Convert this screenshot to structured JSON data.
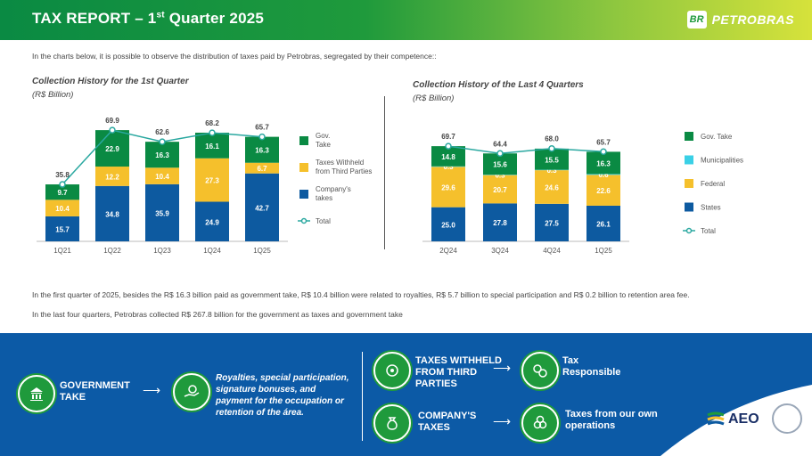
{
  "header": {
    "title_main": "TAX REPORT – 1",
    "title_sup": "st",
    "title_rest": " Quarter 2025",
    "logo_mark": "BR",
    "logo_text": "PETROBRAS"
  },
  "intro": "In the charts below, it is possible to observe the distribution of taxes paid by Petrobras, segregated by their competence::",
  "notes": [
    "In the first quarter of 2025, besides the R$ 16.3 billion paid as government take, R$ 10.4 billion were related to royalties, R$ 5.7 billion to special participation and R$ 0.2 billion to retention area fee.",
    "In the last four quarters, Petrobras collected R$ 267.8 billion for the government as taxes and government take"
  ],
  "colors": {
    "green": "#0a8a43",
    "yellow": "#f5c02c",
    "blue": "#0d5aa0",
    "cyan": "#3ad0e6",
    "line": "#2aa8a0",
    "footer": "#0c5aa6"
  },
  "chart_data": [
    {
      "type": "bar",
      "title": "Collection History for the 1st Quarter",
      "subtitle": "(R$ Billion)",
      "categories": [
        "1Q21",
        "1Q22",
        "1Q23",
        "1Q24",
        "1Q25"
      ],
      "series": [
        {
          "name": "Company's takes",
          "color": "#0d5aa0",
          "values": [
            15.7,
            34.8,
            35.9,
            24.9,
            42.7
          ]
        },
        {
          "name": "Taxes Withheld from Third Parties",
          "color": "#f5c02c",
          "values": [
            10.4,
            12.2,
            10.4,
            27.3,
            6.7
          ]
        },
        {
          "name": "Gov. Take",
          "color": "#0a8a43",
          "values": [
            9.7,
            22.9,
            16.3,
            16.1,
            16.3
          ]
        }
      ],
      "total": {
        "name": "Total",
        "values": [
          35.8,
          69.9,
          62.6,
          68.2,
          65.7
        ]
      },
      "legend": [
        "Gov. Take",
        "Taxes Withheld from Third Parties",
        "Company's takes",
        "Total"
      ],
      "ylim": [
        0,
        75
      ]
    },
    {
      "type": "bar",
      "title": "Collection History of the Last 4 Quarters",
      "subtitle": "(R$ Billion)",
      "categories": [
        "2Q24",
        "3Q24",
        "4Q24",
        "1Q25"
      ],
      "series": [
        {
          "name": "States",
          "color": "#0d5aa0",
          "values": [
            25.0,
            27.8,
            27.5,
            26.1
          ]
        },
        {
          "name": "Federal",
          "color": "#f5c02c",
          "values": [
            29.6,
            20.7,
            24.6,
            22.6
          ]
        },
        {
          "name": "Municipalities",
          "color": "#3ad0e6",
          "values": [
            0.3,
            0.3,
            0.3,
            0.6
          ]
        },
        {
          "name": "Gov. Take",
          "color": "#0a8a43",
          "values": [
            14.8,
            15.6,
            15.5,
            16.3
          ]
        }
      ],
      "total": {
        "name": "Total",
        "values": [
          69.7,
          64.4,
          68.0,
          65.7
        ]
      },
      "legend": [
        "Gov. Take",
        "Municipalities",
        "Federal",
        "States",
        "Total"
      ],
      "ylim": [
        0,
        75
      ]
    }
  ],
  "footer": {
    "gov_take": "GOVERNMENT TAKE",
    "gov_desc": "Royalties, special participation, signature bonuses, and payment for the occupation or retention of the área.",
    "withheld": "TAXES WITHHELD FROM THIRD PARTIES",
    "withheld_target": "Tax Responsible",
    "company": "COMPANY'S TAXES",
    "company_target": "Taxes from our own operations",
    "aeo_logo": "AEO",
    "icons": [
      "building-icon",
      "hand-coin-icon",
      "gears-icon",
      "money-bag-icon"
    ]
  }
}
